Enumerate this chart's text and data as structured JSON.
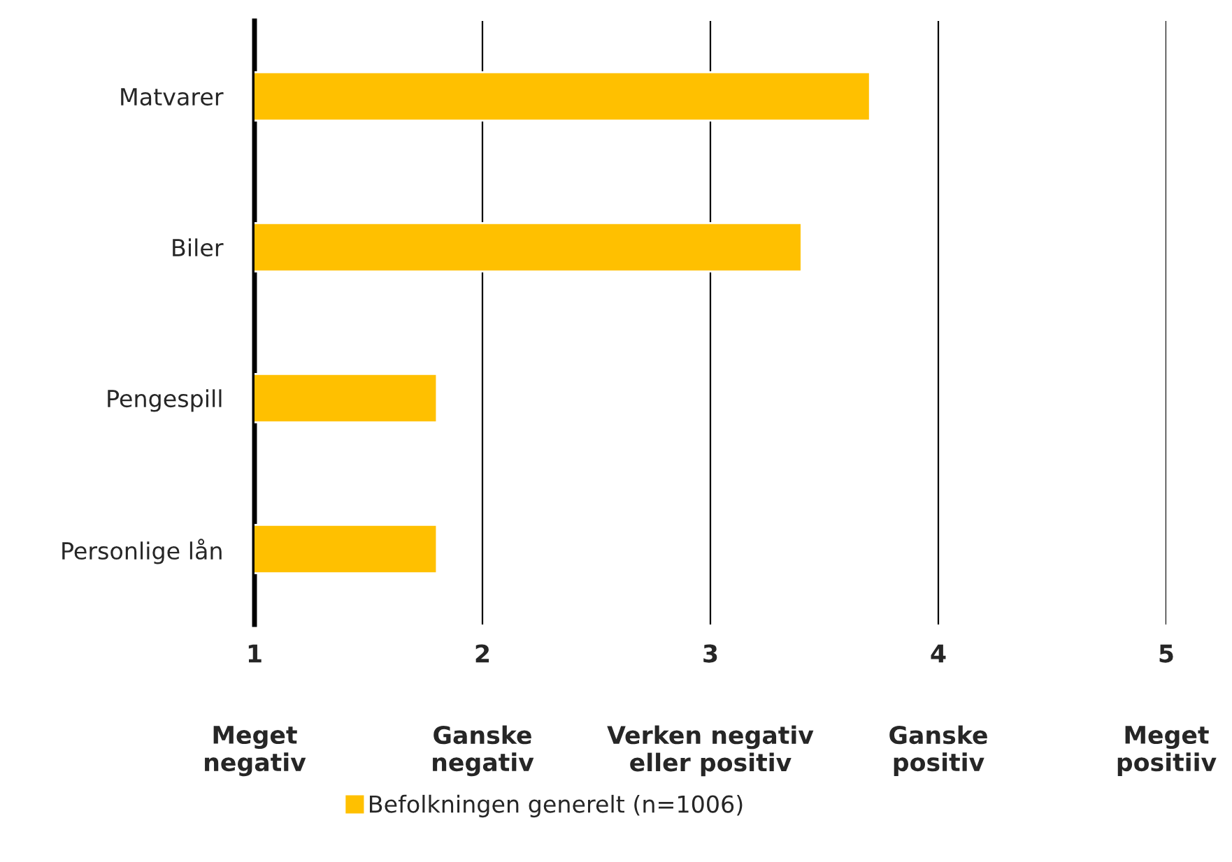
{
  "chart_data": {
    "type": "bar",
    "orientation": "horizontal",
    "categories": [
      "Matvarer",
      "Biler",
      "Pengespill",
      "Personlige lån"
    ],
    "series": [
      {
        "name": "Befolkningen generelt (n=1006)",
        "color": "#ffc000",
        "values": [
          3.7,
          3.4,
          1.8,
          1.8
        ]
      }
    ],
    "xlim": [
      1,
      5
    ],
    "xticks": [
      1,
      2,
      3,
      4,
      5
    ],
    "annotations": [
      "Meget\nnegativ",
      "Ganske\nnegativ",
      "Verken negativ\neller positiv",
      "Ganske\npositiv",
      "Meget\npositiiv"
    ],
    "grid": "x",
    "legend": "bottom"
  }
}
